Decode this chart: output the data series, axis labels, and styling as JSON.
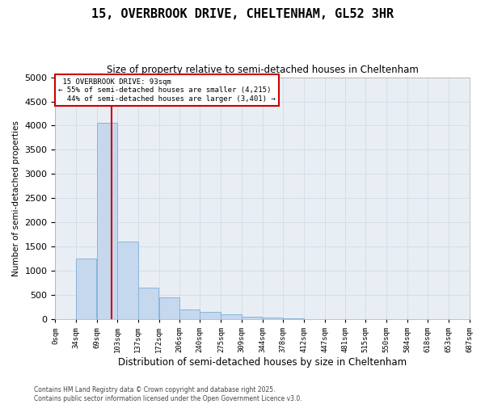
{
  "title": "15, OVERBROOK DRIVE, CHELTENHAM, GL52 3HR",
  "subtitle": "Size of property relative to semi-detached houses in Cheltenham",
  "xlabel": "Distribution of semi-detached houses by size in Cheltenham",
  "ylabel": "Number of semi-detached properties",
  "footer_line1": "Contains HM Land Registry data © Crown copyright and database right 2025.",
  "footer_line2": "Contains public sector information licensed under the Open Government Licence v3.0.",
  "property_size": 93,
  "property_label": "15 OVERBROOK DRIVE: 93sqm",
  "pct_smaller": 55,
  "pct_larger": 44,
  "count_smaller": 4215,
  "count_larger": 3401,
  "house_type": "semi-detached",
  "bin_edges": [
    0,
    34,
    69,
    103,
    137,
    172,
    206,
    240,
    275,
    309,
    344,
    378,
    412,
    447,
    481,
    515,
    550,
    584,
    618,
    653,
    687
  ],
  "bin_labels": [
    "0sqm",
    "34sqm",
    "69sqm",
    "103sqm",
    "137sqm",
    "172sqm",
    "206sqm",
    "240sqm",
    "275sqm",
    "309sqm",
    "344sqm",
    "378sqm",
    "412sqm",
    "447sqm",
    "481sqm",
    "515sqm",
    "550sqm",
    "584sqm",
    "618sqm",
    "653sqm",
    "687sqm"
  ],
  "counts": [
    0,
    1250,
    4050,
    1600,
    650,
    450,
    200,
    150,
    100,
    60,
    30,
    15,
    10,
    5,
    3,
    2,
    1,
    1,
    0,
    0
  ],
  "bar_color": "#c5d8ee",
  "bar_edge_color": "#8ab4d8",
  "vline_color": "#cc0000",
  "annotation_box_color": "#cc0000",
  "grid_color": "#d0d8e4",
  "background_color": "#e8eef4",
  "ylim": [
    0,
    5000
  ],
  "yticks": [
    0,
    500,
    1000,
    1500,
    2000,
    2500,
    3000,
    3500,
    4000,
    4500,
    5000
  ]
}
